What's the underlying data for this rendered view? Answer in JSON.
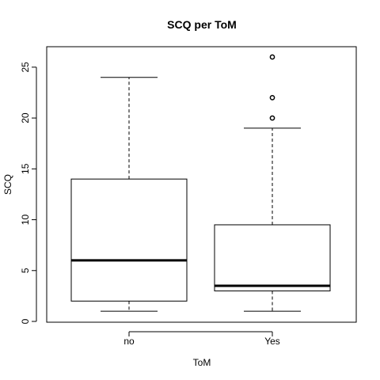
{
  "chart_data": {
    "type": "boxplot",
    "title": "SCQ per ToM",
    "xlabel": "ToM",
    "ylabel": "SCQ",
    "categories": [
      "no",
      "Yes"
    ],
    "ylim": [
      0,
      27
    ],
    "yticks": [
      0,
      5,
      10,
      15,
      20,
      25
    ],
    "grid": false,
    "legend": "none",
    "boxes": [
      {
        "category": "no",
        "whisker_low": 1,
        "q1": 2,
        "median": 6,
        "q3": 14,
        "whisker_high": 24,
        "outliers": []
      },
      {
        "category": "Yes",
        "whisker_low": 1,
        "q1": 3,
        "median": 3.5,
        "q3": 9.5,
        "whisker_high": 19,
        "outliers": [
          20,
          22,
          26
        ]
      }
    ]
  }
}
